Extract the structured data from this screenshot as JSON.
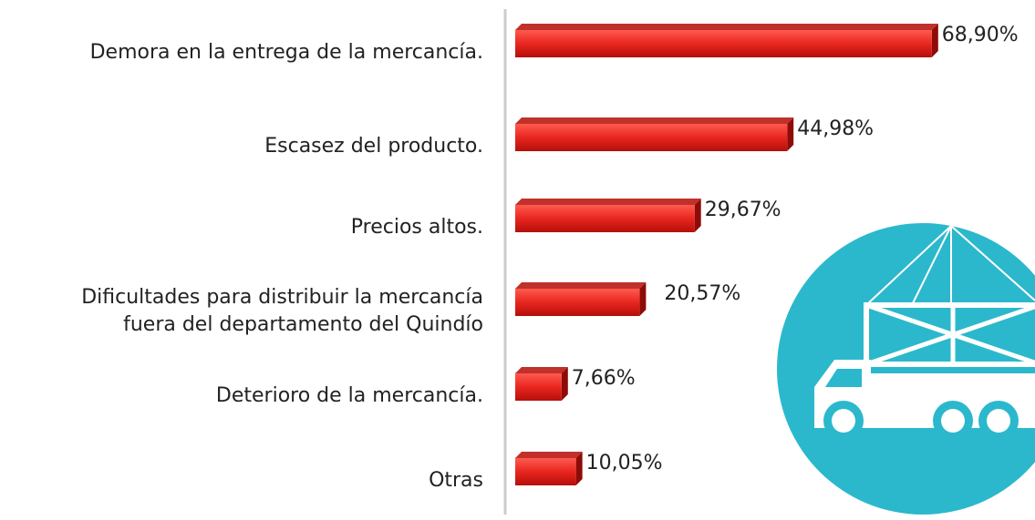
{
  "chart_data": {
    "type": "bar",
    "orientation": "horizontal",
    "categories": [
      "Demora en la entrega de la mercancía.",
      "Escasez del producto.",
      "Precios altos.",
      "Dificultades para distribuir la mercancía\nfuera del departamento del Quindío",
      "Deterioro de la mercancía.",
      "Otras"
    ],
    "values": [
      68.9,
      44.98,
      29.67,
      20.57,
      7.66,
      10.05
    ],
    "value_labels": [
      "68,90%",
      "44,98%",
      "29,67%",
      "20,57%",
      "7,66%",
      "10,05%"
    ],
    "color": "#e8261f"
  }
}
